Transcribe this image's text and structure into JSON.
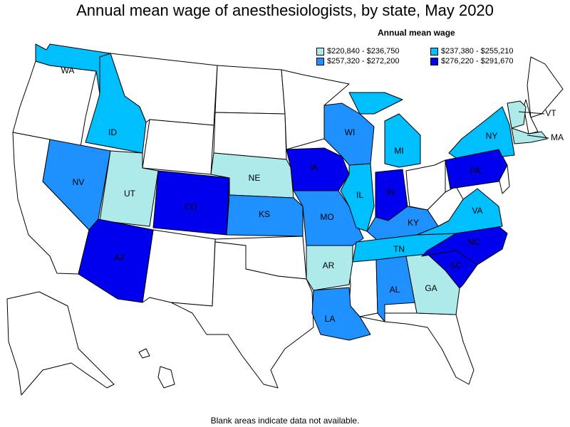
{
  "title": "Annual mean wage of anesthesiologists, by state, May 2020",
  "legend": {
    "title": "Annual mean wage",
    "items": [
      {
        "label": "$220,840 - $236,750",
        "color": "#aeeaea"
      },
      {
        "label": "$237,380 - $255,210",
        "color": "#00bfff"
      },
      {
        "label": "$257,320 - $272,200",
        "color": "#1e90ff"
      },
      {
        "label": "$276,220 - $291,670",
        "color": "#0000ee"
      }
    ]
  },
  "footnote": "Blank areas indicate data not available.",
  "colors": {
    "no_data": "#ffffff",
    "border": "#000000"
  },
  "states": [
    {
      "code": "WA",
      "range": 1
    },
    {
      "code": "ID",
      "range": 1
    },
    {
      "code": "NV",
      "range": 2
    },
    {
      "code": "UT",
      "range": 0
    },
    {
      "code": "AZ",
      "range": 3
    },
    {
      "code": "CO",
      "range": 3
    },
    {
      "code": "NE",
      "range": 0
    },
    {
      "code": "KS",
      "range": 2
    },
    {
      "code": "IA",
      "range": 3
    },
    {
      "code": "MO",
      "range": 2
    },
    {
      "code": "AR",
      "range": 0
    },
    {
      "code": "LA",
      "range": 2
    },
    {
      "code": "WI",
      "range": 2
    },
    {
      "code": "IL",
      "range": 1
    },
    {
      "code": "MI",
      "range": 1
    },
    {
      "code": "IN",
      "range": 3
    },
    {
      "code": "KY",
      "range": 2
    },
    {
      "code": "TN",
      "range": 1
    },
    {
      "code": "AL",
      "range": 2
    },
    {
      "code": "GA",
      "range": 0
    },
    {
      "code": "SC",
      "range": 3
    },
    {
      "code": "NC",
      "range": 3
    },
    {
      "code": "VA",
      "range": 1
    },
    {
      "code": "PA",
      "range": 3
    },
    {
      "code": "NY",
      "range": 1
    },
    {
      "code": "VT",
      "range": 0
    },
    {
      "code": "MA",
      "range": 0
    }
  ]
}
